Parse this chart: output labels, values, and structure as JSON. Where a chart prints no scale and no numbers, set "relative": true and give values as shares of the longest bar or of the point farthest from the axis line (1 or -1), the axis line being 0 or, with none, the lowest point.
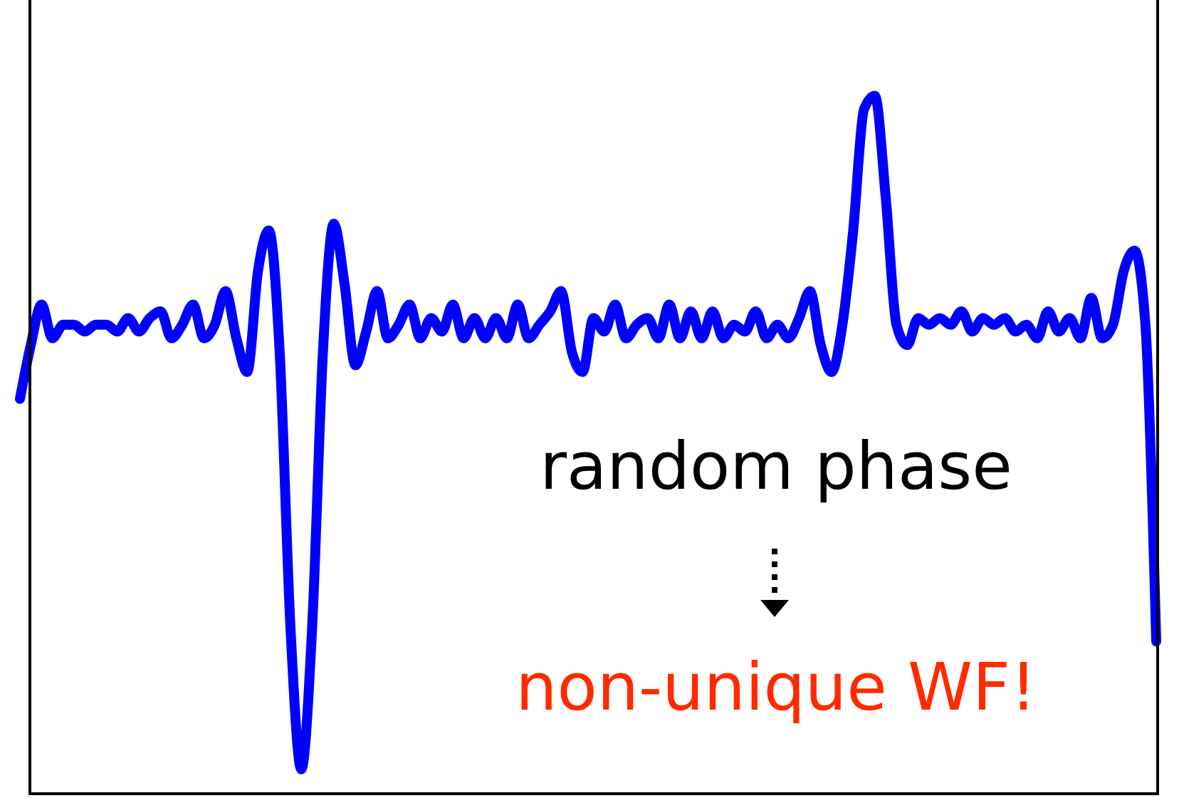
{
  "chart_data": {
    "type": "line",
    "relative": true,
    "marker": "none",
    "line_style": "solid",
    "categories": [
      null,
      null,
      null,
      null,
      null,
      null,
      null,
      null,
      null,
      null,
      null,
      null,
      null,
      null,
      null,
      null,
      null,
      null,
      null,
      null,
      null,
      null,
      null,
      null,
      null,
      null,
      null,
      null,
      null,
      null,
      null,
      null,
      null,
      null,
      null,
      null,
      null,
      null,
      null,
      null,
      null,
      null,
      null,
      null,
      null,
      null,
      null,
      null,
      null,
      null,
      null,
      null,
      null,
      null,
      null,
      null,
      null,
      null,
      null,
      null,
      null,
      null,
      null,
      null,
      null,
      null,
      null,
      null,
      null,
      null,
      null,
      null,
      null,
      null,
      null,
      null,
      null,
      null,
      null,
      null,
      null,
      null,
      null,
      null,
      null,
      null,
      null,
      null,
      null,
      null,
      null,
      null,
      null,
      null,
      null,
      null,
      null,
      null,
      null,
      null,
      null,
      null,
      null,
      null,
      null,
      null
    ],
    "series": [
      {
        "color": "#0000ff",
        "values": [
          0.55,
          0.63,
          0.69,
          0.64,
          0.66,
          0.66,
          0.65,
          0.66,
          0.66,
          0.65,
          0.67,
          0.65,
          0.67,
          0.68,
          0.64,
          0.66,
          0.69,
          0.64,
          0.66,
          0.71,
          0.64,
          0.59,
          0.74,
          0.8,
          0.62,
          0.21,
          0,
          0.21,
          0.62,
          0.81,
          0.72,
          0.6,
          0.65,
          0.71,
          0.64,
          0.66,
          0.69,
          0.64,
          0.67,
          0.65,
          0.69,
          0.64,
          0.67,
          0.64,
          0.67,
          0.64,
          0.69,
          0.64,
          0.66,
          0.68,
          0.71,
          0.62,
          0.59,
          0.67,
          0.65,
          0.69,
          0.64,
          0.66,
          0.67,
          0.64,
          0.69,
          0.64,
          0.68,
          0.64,
          0.68,
          0.64,
          0.66,
          0.65,
          0.68,
          0.64,
          0.66,
          0.64,
          0.67,
          0.71,
          0.63,
          0.59,
          0.66,
          0.8,
          0.98,
          1,
          0.85,
          0.66,
          0.63,
          0.67,
          0.66,
          0.67,
          0.66,
          0.68,
          0.65,
          0.67,
          0.66,
          0.67,
          0.65,
          0.66,
          0.64,
          0.68,
          0.65,
          0.67,
          0.64,
          0.7,
          0.64,
          0.66,
          0.74,
          0.77,
          0.66,
          0.19
        ]
      }
    ],
    "annotations": [
      "random phase",
      "non-unique WF!"
    ]
  }
}
